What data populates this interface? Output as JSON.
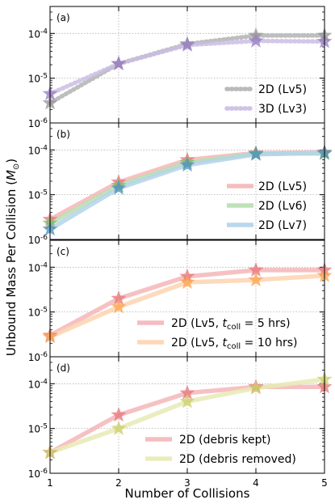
{
  "figure": {
    "ylabel_main": "Unbound Mass Per Collision (",
    "ylabel_unit": "M",
    "ylabel_sub": "⊙",
    "ylabel_close": ")",
    "xlabel": "Number of Collisions"
  },
  "chart_data": [
    {
      "type": "line",
      "panel_label": "(a)",
      "x": [
        1,
        2,
        3,
        4,
        5
      ],
      "xticks": [
        "1",
        "2",
        "3",
        "4",
        "5"
      ],
      "xlim": [
        1,
        5
      ],
      "yscale": "log",
      "ylim": [
        1e-06,
        0.0004
      ],
      "yticks": [
        {
          "v": 1e-06,
          "base": "10",
          "exp": "-6"
        },
        {
          "v": 1e-05,
          "base": "10",
          "exp": "-5"
        },
        {
          "v": 0.0001,
          "base": "10",
          "exp": "-4"
        }
      ],
      "grid": true,
      "legend_position": "lower-right",
      "legend_style": "dotted",
      "series": [
        {
          "name": "2D (Lv5)",
          "color": "#b3b3b3",
          "marker_color": "#999999",
          "values": [
            2.8e-06,
            2.1e-05,
            5.8e-05,
            9e-05,
            9e-05
          ]
        },
        {
          "name": "3D (Lv3)",
          "color": "#cbbde4",
          "marker_color": "#9b7fc6",
          "values": [
            4.5e-06,
            2.1e-05,
            5.5e-05,
            6.8e-05,
            6.6e-05
          ]
        }
      ]
    },
    {
      "type": "line",
      "panel_label": "(b)",
      "x": [
        1,
        2,
        3,
        4,
        5
      ],
      "xticks": [
        "1",
        "2",
        "3",
        "4",
        "5"
      ],
      "xlim": [
        1,
        5
      ],
      "yscale": "log",
      "ylim": [
        1e-06,
        0.0004
      ],
      "yticks": [
        {
          "v": 1e-06,
          "base": "10",
          "exp": "-6"
        },
        {
          "v": 1e-05,
          "base": "10",
          "exp": "-5"
        },
        {
          "v": 0.0001,
          "base": "10",
          "exp": "-4"
        }
      ],
      "grid": true,
      "legend_position": "lower-right",
      "legend_style": "solid",
      "series": [
        {
          "name": "2D (Lv5)",
          "color": "#f4b6b8",
          "marker_color": "#e8797d",
          "values": [
            2.8e-06,
            1.9e-05,
            6e-05,
            8.5e-05,
            8.8e-05
          ]
        },
        {
          "name": "2D (Lv6)",
          "color": "#b9deb0",
          "marker_color": "#7bbf6c",
          "values": [
            2.3e-06,
            1.6e-05,
            5.2e-05,
            8.3e-05,
            8.3e-05
          ]
        },
        {
          "name": "2D (Lv7)",
          "color": "#b3d3ea",
          "marker_color": "#4f92c2",
          "values": [
            1.7e-06,
            1.4e-05,
            4.6e-05,
            8e-05,
            8.6e-05
          ]
        }
      ]
    },
    {
      "type": "line",
      "panel_label": "(c)",
      "x": [
        1,
        2,
        3,
        4,
        5
      ],
      "xticks": [
        "1",
        "2",
        "3",
        "4",
        "5"
      ],
      "xlim": [
        1,
        5
      ],
      "yscale": "log",
      "ylim": [
        1e-06,
        0.0004
      ],
      "yticks": [
        {
          "v": 1e-06,
          "base": "10",
          "exp": "-6"
        },
        {
          "v": 1e-05,
          "base": "10",
          "exp": "-5"
        },
        {
          "v": 0.0001,
          "base": "10",
          "exp": "-4"
        }
      ],
      "grid": true,
      "legend_position": "lower-right",
      "legend_style": "solid",
      "series": [
        {
          "name": "2D (Lv5, ",
          "name_var": "t",
          "name_sub": "coll",
          "name_tail": " = 5 hrs)",
          "color": "#f4b6b8",
          "marker_color": "#e8797d",
          "values": [
            3e-06,
            2e-05,
            6.2e-05,
            8.6e-05,
            8.6e-05
          ]
        },
        {
          "name": "2D (Lv5, ",
          "name_var": "t",
          "name_sub": "coll",
          "name_tail": " = 10 hrs)",
          "color": "#fdd4b0",
          "marker_color": "#fba551",
          "values": [
            2.8e-06,
            1.3e-05,
            4.6e-05,
            5.2e-05,
            6.5e-05
          ]
        }
      ]
    },
    {
      "type": "line",
      "panel_label": "(d)",
      "x": [
        1,
        2,
        3,
        4,
        5
      ],
      "xticks": [
        "1",
        "2",
        "3",
        "4",
        "5"
      ],
      "xlim": [
        1,
        5
      ],
      "yscale": "log",
      "ylim": [
        1e-06,
        0.0004
      ],
      "yticks": [
        {
          "v": 1e-06,
          "base": "10",
          "exp": "-6"
        },
        {
          "v": 1e-05,
          "base": "10",
          "exp": "-5"
        },
        {
          "v": 0.0001,
          "base": "10",
          "exp": "-4"
        }
      ],
      "grid": true,
      "legend_position": "lower-right",
      "legend_style": "solid",
      "series": [
        {
          "name": "2D (debris kept)",
          "color": "#f4b6b8",
          "marker_color": "#e8797d",
          "values": [
            2.9e-06,
            2e-05,
            6.2e-05,
            8.5e-05,
            8.5e-05
          ]
        },
        {
          "name": "2D (debris removed)",
          "color": "#e8eab5",
          "marker_color": "#cdd06a",
          "values": [
            2.9e-06,
            1e-05,
            4e-05,
            8e-05,
            0.000125
          ]
        }
      ]
    }
  ]
}
